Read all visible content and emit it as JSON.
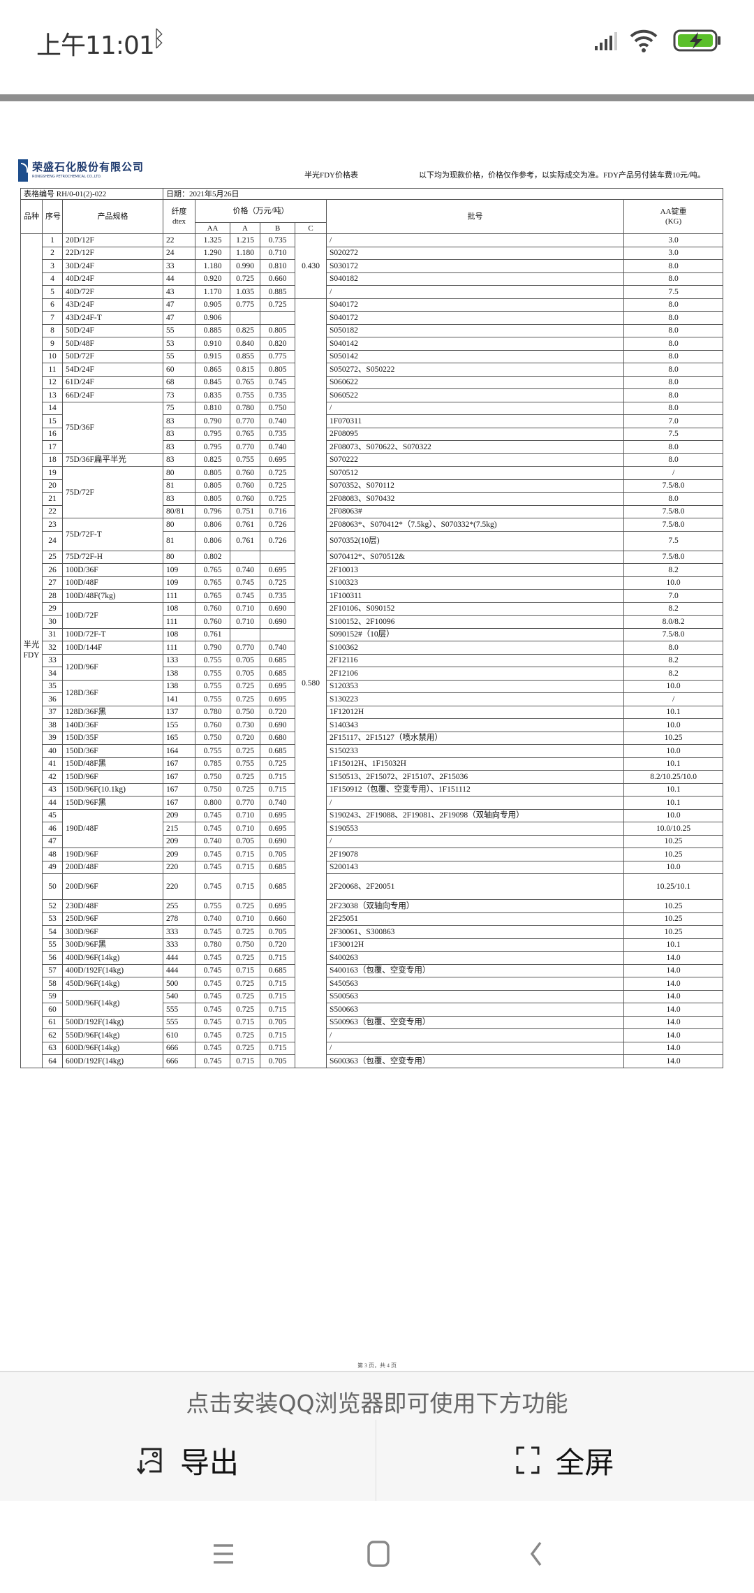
{
  "status_bar": {
    "time": "上午11:01",
    "icons": [
      "bluetooth-icon",
      "signal-icon",
      "wifi-icon",
      "battery-charging-icon"
    ],
    "battery_color": "#5bbf2a"
  },
  "document": {
    "logo_cn": "荣盛石化股份有限公司",
    "logo_en": "RONGSHENG PETROCHEMICAL CO.,LTD.",
    "title": "半光FDY价格表",
    "note": "以下均为现款价格，价格仅作参考，以实际成交为准。FDY产品另付装车费10元/吨。",
    "form_no": "表格编号 RH/0-01(2)-022",
    "date": "日期：2021年5月26日",
    "page_label": "第 3 页，共 4 页"
  },
  "table": {
    "headers": {
      "kind": "品种",
      "no": "序号",
      "spec": "产品规格",
      "dtex_1": "纤度",
      "dtex_2": "dtex",
      "price": "价格（万元/吨）",
      "aa": "AA",
      "a": "A",
      "b": "B",
      "c": "C",
      "batch": "批号",
      "weight_1": "AA锭重",
      "weight_2": "(KG)"
    },
    "kind": "半光FDY",
    "price_c": [
      "0.430",
      "0.580"
    ],
    "rows": [
      {
        "no": "1",
        "spec": "20D/12F",
        "dtex": "22",
        "aa": "1.325",
        "a": "1.215",
        "b": "0.735",
        "batch": "/",
        "weight": "3.0"
      },
      {
        "no": "2",
        "spec": "22D/12F",
        "dtex": "24",
        "aa": "1.290",
        "a": "1.180",
        "b": "0.710",
        "batch": "S020272",
        "weight": "3.0"
      },
      {
        "no": "3",
        "spec": "30D/24F",
        "dtex": "33",
        "aa": "1.180",
        "a": "0.990",
        "b": "0.810",
        "batch": "S030172",
        "weight": "8.0"
      },
      {
        "no": "4",
        "spec": "40D/24F",
        "dtex": "44",
        "aa": "0.920",
        "a": "0.725",
        "b": "0.660",
        "batch": "S040182",
        "weight": "8.0"
      },
      {
        "no": "5",
        "spec": "40D/72F",
        "dtex": "43",
        "aa": "1.170",
        "a": "1.035",
        "b": "0.885",
        "batch": "/",
        "weight": "7.5"
      },
      {
        "no": "6",
        "spec": "43D/24F",
        "dtex": "47",
        "aa": "0.905",
        "a": "0.775",
        "b": "0.725",
        "batch": "S040172",
        "weight": "8.0"
      },
      {
        "no": "7",
        "spec": "43D/24F-T",
        "dtex": "47",
        "aa": "0.906",
        "a": "",
        "b": "",
        "batch": "S040172",
        "weight": "8.0"
      },
      {
        "no": "8",
        "spec": "50D/24F",
        "dtex": "55",
        "aa": "0.885",
        "a": "0.825",
        "b": "0.805",
        "batch": "S050182",
        "weight": "8.0"
      },
      {
        "no": "9",
        "spec": "50D/48F",
        "dtex": "53",
        "aa": "0.910",
        "a": "0.840",
        "b": "0.820",
        "batch": "S040142",
        "weight": "8.0"
      },
      {
        "no": "10",
        "spec": "50D/72F",
        "dtex": "55",
        "aa": "0.915",
        "a": "0.855",
        "b": "0.775",
        "batch": "S050142",
        "weight": "8.0"
      },
      {
        "no": "11",
        "spec": "54D/24F",
        "dtex": "60",
        "aa": "0.865",
        "a": "0.815",
        "b": "0.805",
        "batch": "S050272、S050222",
        "weight": "8.0"
      },
      {
        "no": "12",
        "spec": "61D/24F",
        "dtex": "68",
        "aa": "0.845",
        "a": "0.765",
        "b": "0.745",
        "batch": "S060622",
        "weight": "8.0"
      },
      {
        "no": "13",
        "spec": "66D/24F",
        "dtex": "73",
        "aa": "0.835",
        "a": "0.755",
        "b": "0.735",
        "batch": "S060522",
        "weight": "8.0"
      },
      {
        "no": "14",
        "spec": "75D/36F",
        "spec_rows": 4,
        "dtex": "75",
        "aa": "0.810",
        "a": "0.780",
        "b": "0.750",
        "batch": "/",
        "weight": "8.0"
      },
      {
        "no": "15",
        "dtex": "83",
        "aa": "0.790",
        "a": "0.770",
        "b": "0.740",
        "batch": "1F070311",
        "weight": "7.0"
      },
      {
        "no": "16",
        "dtex": "83",
        "aa": "0.795",
        "a": "0.765",
        "b": "0.735",
        "batch": "2F08095",
        "weight": "7.5"
      },
      {
        "no": "17",
        "dtex": "83",
        "aa": "0.795",
        "a": "0.770",
        "b": "0.740",
        "batch": "2F08073、S070622、S070322",
        "weight": "8.0"
      },
      {
        "no": "18",
        "spec": "75D/36F扁平半光",
        "dtex": "83",
        "aa": "0.825",
        "a": "0.755",
        "b": "0.695",
        "batch": "S070222",
        "weight": "8.0"
      },
      {
        "no": "19",
        "spec": "75D/72F",
        "spec_rows": 4,
        "dtex": "80",
        "aa": "0.805",
        "a": "0.760",
        "b": "0.725",
        "batch": "S070512",
        "weight": "/"
      },
      {
        "no": "20",
        "dtex": "81",
        "aa": "0.805",
        "a": "0.760",
        "b": "0.725",
        "batch": "S070352、S070112",
        "weight": "7.5/8.0"
      },
      {
        "no": "21",
        "dtex": "83",
        "aa": "0.805",
        "a": "0.760",
        "b": "0.725",
        "batch": "2F08083、S070432",
        "weight": "8.0"
      },
      {
        "no": "22",
        "dtex": "80/81",
        "aa": "0.796",
        "a": "0.751",
        "b": "0.716",
        "batch": "2F08063#",
        "weight": "7.5/8.0"
      },
      {
        "no": "23",
        "spec": "75D/72F-T",
        "spec_rows": 2,
        "dtex": "80",
        "aa": "0.806",
        "a": "0.761",
        "b": "0.726",
        "batch": "2F08063*、S070412*（7.5kg）、S070332*(7.5kg)",
        "weight": "7.5/8.0"
      },
      {
        "no": "24",
        "dtex": "81",
        "aa": "0.806",
        "a": "0.761",
        "b": "0.726",
        "batch": "S070352(10层)",
        "weight": "7.5"
      },
      {
        "no": "25",
        "spec": "75D/72F-H",
        "dtex": "80",
        "aa": "0.802",
        "a": "",
        "b": "",
        "batch": "S070412*、S070512&",
        "weight": "7.5/8.0"
      },
      {
        "no": "26",
        "spec": "100D/36F",
        "dtex": "109",
        "aa": "0.765",
        "a": "0.740",
        "b": "0.695",
        "batch": "2F10013",
        "weight": "8.2"
      },
      {
        "no": "27",
        "spec": "100D/48F",
        "dtex": "109",
        "aa": "0.765",
        "a": "0.745",
        "b": "0.725",
        "batch": "S100323",
        "weight": "10.0"
      },
      {
        "no": "28",
        "spec": "100D/48F(7kg)",
        "dtex": "111",
        "aa": "0.765",
        "a": "0.745",
        "b": "0.735",
        "batch": "1F100311",
        "weight": "7.0"
      },
      {
        "no": "29",
        "spec": "100D/72F",
        "spec_rows": 2,
        "dtex": "108",
        "aa": "0.760",
        "a": "0.710",
        "b": "0.690",
        "batch": "2F10106、S090152",
        "weight": "8.2"
      },
      {
        "no": "30",
        "dtex": "111",
        "aa": "0.760",
        "a": "0.710",
        "b": "0.690",
        "batch": "S100152、2F10096",
        "weight": "8.0/8.2"
      },
      {
        "no": "31",
        "spec": "100D/72F-T",
        "dtex": "108",
        "aa": "0.761",
        "a": "",
        "b": "",
        "batch": "S090152#（10层）",
        "weight": "7.5/8.0"
      },
      {
        "no": "32",
        "spec": "100D/144F",
        "dtex": "111",
        "aa": "0.790",
        "a": "0.770",
        "b": "0.740",
        "batch": "S100362",
        "weight": "8.0"
      },
      {
        "no": "33",
        "spec": "120D/96F",
        "spec_rows": 2,
        "dtex": "133",
        "aa": "0.755",
        "a": "0.705",
        "b": "0.685",
        "batch": "2F12116",
        "weight": "8.2"
      },
      {
        "no": "34",
        "dtex": "138",
        "aa": "0.755",
        "a": "0.705",
        "b": "0.685",
        "batch": "2F12106",
        "weight": "8.2"
      },
      {
        "no": "35",
        "spec": "128D/36F",
        "spec_rows": 2,
        "dtex": "138",
        "aa": "0.755",
        "a": "0.725",
        "b": "0.695",
        "batch": "S120353",
        "weight": "10.0"
      },
      {
        "no": "36",
        "dtex": "141",
        "aa": "0.755",
        "a": "0.725",
        "b": "0.695",
        "batch": "S130223",
        "weight": "/"
      },
      {
        "no": "37",
        "spec": "128D/36F黑",
        "dtex": "137",
        "aa": "0.780",
        "a": "0.750",
        "b": "0.720",
        "batch": "1F12012H",
        "weight": "10.1"
      },
      {
        "no": "38",
        "spec": "140D/36F",
        "dtex": "155",
        "aa": "0.760",
        "a": "0.730",
        "b": "0.690",
        "batch": "S140343",
        "weight": "10.0"
      },
      {
        "no": "39",
        "spec": "150D/35F",
        "dtex": "165",
        "aa": "0.750",
        "a": "0.720",
        "b": "0.680",
        "batch": "2F15117、2F15127（喷水禁用）",
        "weight": "10.25"
      },
      {
        "no": "40",
        "spec": "150D/36F",
        "dtex": "164",
        "aa": "0.755",
        "a": "0.725",
        "b": "0.685",
        "batch": "S150233",
        "weight": "10.0"
      },
      {
        "no": "41",
        "spec": "150D/48F黑",
        "dtex": "167",
        "aa": "0.785",
        "a": "0.755",
        "b": "0.725",
        "batch": "1F15012H、1F15032H",
        "weight": "10.1"
      },
      {
        "no": "42",
        "spec": "150D/96F",
        "dtex": "167",
        "aa": "0.750",
        "a": "0.725",
        "b": "0.715",
        "batch": "S150513、2F15072、2F15107、2F15036",
        "weight": "8.2/10.25/10.0"
      },
      {
        "no": "43",
        "spec": "150D/96F(10.1kg)",
        "dtex": "167",
        "aa": "0.750",
        "a": "0.725",
        "b": "0.715",
        "batch": "1F150912（包覆、空变专用）、1F151112",
        "weight": "10.1"
      },
      {
        "no": "44",
        "spec": "150D/96F黑",
        "dtex": "167",
        "aa": "0.800",
        "a": "0.770",
        "b": "0.740",
        "batch": "/",
        "weight": "10.1"
      },
      {
        "no": "45",
        "spec": "190D/48F",
        "spec_rows": 3,
        "dtex": "209",
        "aa": "0.745",
        "a": "0.710",
        "b": "0.695",
        "batch": "S190243、2F19088、2F19081、2F19098（双轴向专用）",
        "weight": "10.0"
      },
      {
        "no": "46",
        "dtex": "215",
        "aa": "0.745",
        "a": "0.710",
        "b": "0.695",
        "batch": "S190553",
        "weight": "10.0/10.25"
      },
      {
        "no": "47",
        "dtex": "209",
        "aa": "0.740",
        "a": "0.705",
        "b": "0.690",
        "batch": "/",
        "weight": "10.25"
      },
      {
        "no": "48",
        "spec": "190D/96F",
        "dtex": "209",
        "aa": "0.745",
        "a": "0.715",
        "b": "0.705",
        "batch": "2F19078",
        "weight": "10.25"
      },
      {
        "no": "49",
        "spec": "200D/48F",
        "dtex": "220",
        "aa": "0.745",
        "a": "0.715",
        "b": "0.685",
        "batch": "S200143",
        "weight": "10.0"
      },
      {
        "no": "50",
        "spec": "200D/96F",
        "dtex": "220",
        "aa": "0.745",
        "a": "0.715",
        "b": "0.685",
        "batch": "2F20068、2F20051",
        "weight": "10.25/10.1"
      },
      {
        "no": "52",
        "spec": "230D/48F",
        "dtex": "255",
        "aa": "0.755",
        "a": "0.725",
        "b": "0.695",
        "batch": "2F23038（双轴向专用）",
        "weight": "10.25"
      },
      {
        "no": "53",
        "spec": "250D/96F",
        "dtex": "278",
        "aa": "0.740",
        "a": "0.710",
        "b": "0.660",
        "batch": "2F25051",
        "weight": "10.25"
      },
      {
        "no": "54",
        "spec": "300D/96F",
        "dtex": "333",
        "aa": "0.745",
        "a": "0.725",
        "b": "0.705",
        "batch": "2F30061、S300863",
        "weight": "10.25"
      },
      {
        "no": "55",
        "spec": "300D/96F黑",
        "dtex": "333",
        "aa": "0.780",
        "a": "0.750",
        "b": "0.720",
        "batch": "1F30012H",
        "weight": "10.1"
      },
      {
        "no": "56",
        "spec": "400D/96F(14kg)",
        "dtex": "444",
        "aa": "0.745",
        "a": "0.725",
        "b": "0.715",
        "batch": "S400263",
        "weight": "14.0"
      },
      {
        "no": "57",
        "spec": "400D/192F(14kg)",
        "dtex": "444",
        "aa": "0.745",
        "a": "0.715",
        "b": "0.685",
        "batch": "S400163（包覆、空变专用）",
        "weight": "14.0"
      },
      {
        "no": "58",
        "spec": "450D/96F(14kg)",
        "dtex": "500",
        "aa": "0.745",
        "a": "0.725",
        "b": "0.715",
        "batch": "S450563",
        "weight": "14.0"
      },
      {
        "no": "59",
        "spec": "500D/96F(14kg)",
        "spec_rows": 2,
        "dtex": "540",
        "aa": "0.745",
        "a": "0.725",
        "b": "0.715",
        "batch": "S500563",
        "weight": "14.0"
      },
      {
        "no": "60",
        "dtex": "555",
        "aa": "0.745",
        "a": "0.725",
        "b": "0.715",
        "batch": "S500663",
        "weight": "14.0"
      },
      {
        "no": "61",
        "spec": "500D/192F(14kg)",
        "dtex": "555",
        "aa": "0.745",
        "a": "0.715",
        "b": "0.705",
        "batch": "S500963（包覆、空变专用）",
        "weight": "14.0"
      },
      {
        "no": "62",
        "spec": "550D/96F(14kg)",
        "dtex": "610",
        "aa": "0.745",
        "a": "0.725",
        "b": "0.715",
        "batch": "/",
        "weight": "14.0"
      },
      {
        "no": "63",
        "spec": "600D/96F(14kg)",
        "dtex": "666",
        "aa": "0.745",
        "a": "0.725",
        "b": "0.715",
        "batch": "/",
        "weight": "14.0"
      },
      {
        "no": "64",
        "spec": "600D/192F(14kg)",
        "dtex": "666",
        "aa": "0.745",
        "a": "0.715",
        "b": "0.705",
        "batch": "S600363（包覆、空变专用）",
        "weight": "14.0"
      }
    ]
  },
  "banner": {
    "message": "点击安装QQ浏览器即可使用下方功能",
    "export_label": "导出",
    "fullscreen_label": "全屏"
  },
  "navbar": {
    "icons": [
      "menu-icon",
      "home-icon",
      "back-icon"
    ]
  }
}
